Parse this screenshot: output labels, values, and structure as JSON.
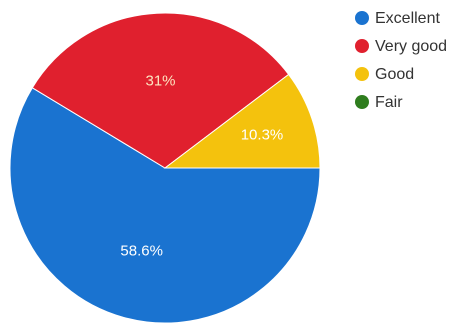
{
  "chart_data": {
    "type": "pie",
    "slices": [
      {
        "label": "Excellent",
        "value": 58.6,
        "color": "#1a73d0",
        "data_label": "58.6%",
        "label_color": "#ffffff"
      },
      {
        "label": "Very good",
        "value": 31,
        "color": "#e0202e",
        "data_label": "31%",
        "label_color": "#fde5c0"
      },
      {
        "label": "Good",
        "value": 10.3,
        "color": "#f4c20d",
        "data_label": "10.3%",
        "label_color": "#ffffff"
      },
      {
        "label": "Fair",
        "value": 0,
        "color": "#2f7d1e",
        "data_label": "",
        "label_color": "#ffffff"
      }
    ],
    "legend": {
      "position": "top-right",
      "entries": [
        "Excellent",
        "Very good",
        "Good",
        "Fair"
      ]
    }
  }
}
